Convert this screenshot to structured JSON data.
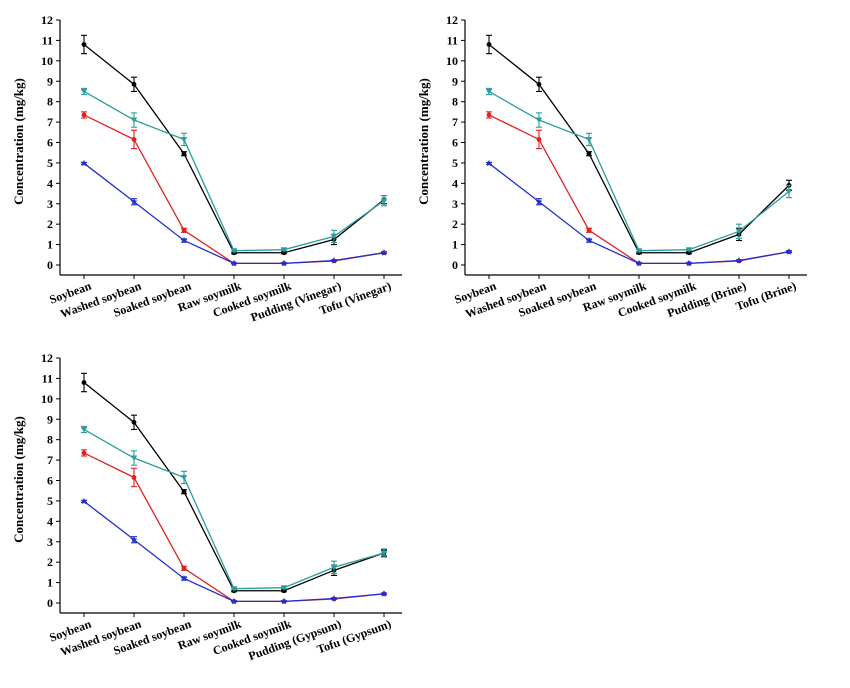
{
  "chart_data": [
    {
      "type": "line",
      "ylabel": "Concentration (mg/kg)",
      "ylim": [
        0,
        12
      ],
      "yticks": [
        "0",
        "1",
        "2",
        "3",
        "4",
        "5",
        "6",
        "7",
        "8",
        "9",
        "10",
        "11",
        "12"
      ],
      "categories": [
        "Soybean",
        "Washed soybean",
        "Soaked soybean",
        "Raw soymilk",
        "Cooked soymilk",
        "Pudding (Vinegar)",
        "Tofu (Vinegar)"
      ],
      "series": [
        {
          "color": "#000000",
          "marker": "circle",
          "values": [
            10.8,
            8.85,
            5.45,
            0.6,
            0.6,
            1.25,
            3.2
          ],
          "errors": [
            0.45,
            0.35,
            0.1,
            0.05,
            0.05,
            0.25,
            0.2
          ]
        },
        {
          "color": "#2a9d9d",
          "marker": "triangle-down",
          "values": [
            8.5,
            7.1,
            6.15,
            0.7,
            0.75,
            1.4,
            3.15
          ],
          "errors": [
            0.15,
            0.35,
            0.3,
            0.05,
            0.05,
            0.3,
            0.25
          ]
        },
        {
          "color": "#e02020",
          "marker": "circle",
          "values": [
            7.35,
            6.15,
            1.7,
            0.08,
            0.08,
            0.2,
            0.6
          ],
          "errors": [
            0.15,
            0.45,
            0.1,
            0.02,
            0.02,
            0.03,
            0.05
          ]
        },
        {
          "color": "#1f2fd0",
          "marker": "star",
          "values": [
            4.98,
            3.1,
            1.2,
            0.08,
            0.08,
            0.22,
            0.6
          ],
          "errors": [
            0.05,
            0.15,
            0.08,
            0.02,
            0.02,
            0.03,
            0.04
          ]
        }
      ]
    },
    {
      "type": "line",
      "ylabel": "Concentration (mg/kg)",
      "ylim": [
        0,
        12
      ],
      "yticks": [
        "0",
        "1",
        "2",
        "3",
        "4",
        "5",
        "6",
        "7",
        "8",
        "9",
        "10",
        "11",
        "12"
      ],
      "categories": [
        "Soybean",
        "Washed soybean",
        "Soaked soybean",
        "Raw soymilk",
        "Cooked soymilk",
        "Pudding (Brine)",
        "Tofu (Brine)"
      ],
      "series": [
        {
          "color": "#000000",
          "marker": "circle",
          "values": [
            10.8,
            8.85,
            5.45,
            0.6,
            0.6,
            1.5,
            3.9
          ],
          "errors": [
            0.45,
            0.35,
            0.1,
            0.05,
            0.05,
            0.3,
            0.25
          ]
        },
        {
          "color": "#2a9d9d",
          "marker": "triangle-down",
          "values": [
            8.5,
            7.1,
            6.15,
            0.7,
            0.75,
            1.65,
            3.6
          ],
          "errors": [
            0.15,
            0.35,
            0.3,
            0.05,
            0.05,
            0.35,
            0.3
          ]
        },
        {
          "color": "#e02020",
          "marker": "circle",
          "values": [
            7.35,
            6.15,
            1.7,
            0.08,
            0.08,
            0.2,
            0.65
          ],
          "errors": [
            0.15,
            0.45,
            0.1,
            0.02,
            0.02,
            0.03,
            0.05
          ]
        },
        {
          "color": "#1f2fd0",
          "marker": "star",
          "values": [
            4.98,
            3.1,
            1.2,
            0.08,
            0.08,
            0.22,
            0.65
          ],
          "errors": [
            0.05,
            0.15,
            0.08,
            0.02,
            0.02,
            0.03,
            0.04
          ]
        }
      ]
    },
    {
      "type": "line",
      "ylabel": "Concentration (mg/kg)",
      "ylim": [
        0,
        12
      ],
      "yticks": [
        "0",
        "1",
        "2",
        "3",
        "4",
        "5",
        "6",
        "7",
        "8",
        "9",
        "10",
        "11",
        "12"
      ],
      "categories": [
        "Soybean",
        "Washed soybean",
        "Soaked soybean",
        "Raw soymilk",
        "Cooked soymilk",
        "Pudding (Gypsum)",
        "Tofu (Gypsum)"
      ],
      "series": [
        {
          "color": "#000000",
          "marker": "circle",
          "values": [
            10.8,
            8.85,
            5.45,
            0.6,
            0.6,
            1.6,
            2.45
          ],
          "errors": [
            0.45,
            0.35,
            0.1,
            0.05,
            0.05,
            0.25,
            0.15
          ]
        },
        {
          "color": "#2a9d9d",
          "marker": "triangle-down",
          "values": [
            8.5,
            7.1,
            6.15,
            0.7,
            0.75,
            1.75,
            2.45
          ],
          "errors": [
            0.15,
            0.35,
            0.3,
            0.05,
            0.05,
            0.3,
            0.2
          ]
        },
        {
          "color": "#e02020",
          "marker": "circle",
          "values": [
            7.35,
            6.15,
            1.7,
            0.08,
            0.08,
            0.2,
            0.45
          ],
          "errors": [
            0.15,
            0.45,
            0.1,
            0.02,
            0.02,
            0.03,
            0.04
          ]
        },
        {
          "color": "#1f2fd0",
          "marker": "star",
          "values": [
            4.98,
            3.1,
            1.2,
            0.08,
            0.08,
            0.22,
            0.45
          ],
          "errors": [
            0.05,
            0.15,
            0.08,
            0.02,
            0.02,
            0.03,
            0.04
          ]
        }
      ]
    }
  ]
}
